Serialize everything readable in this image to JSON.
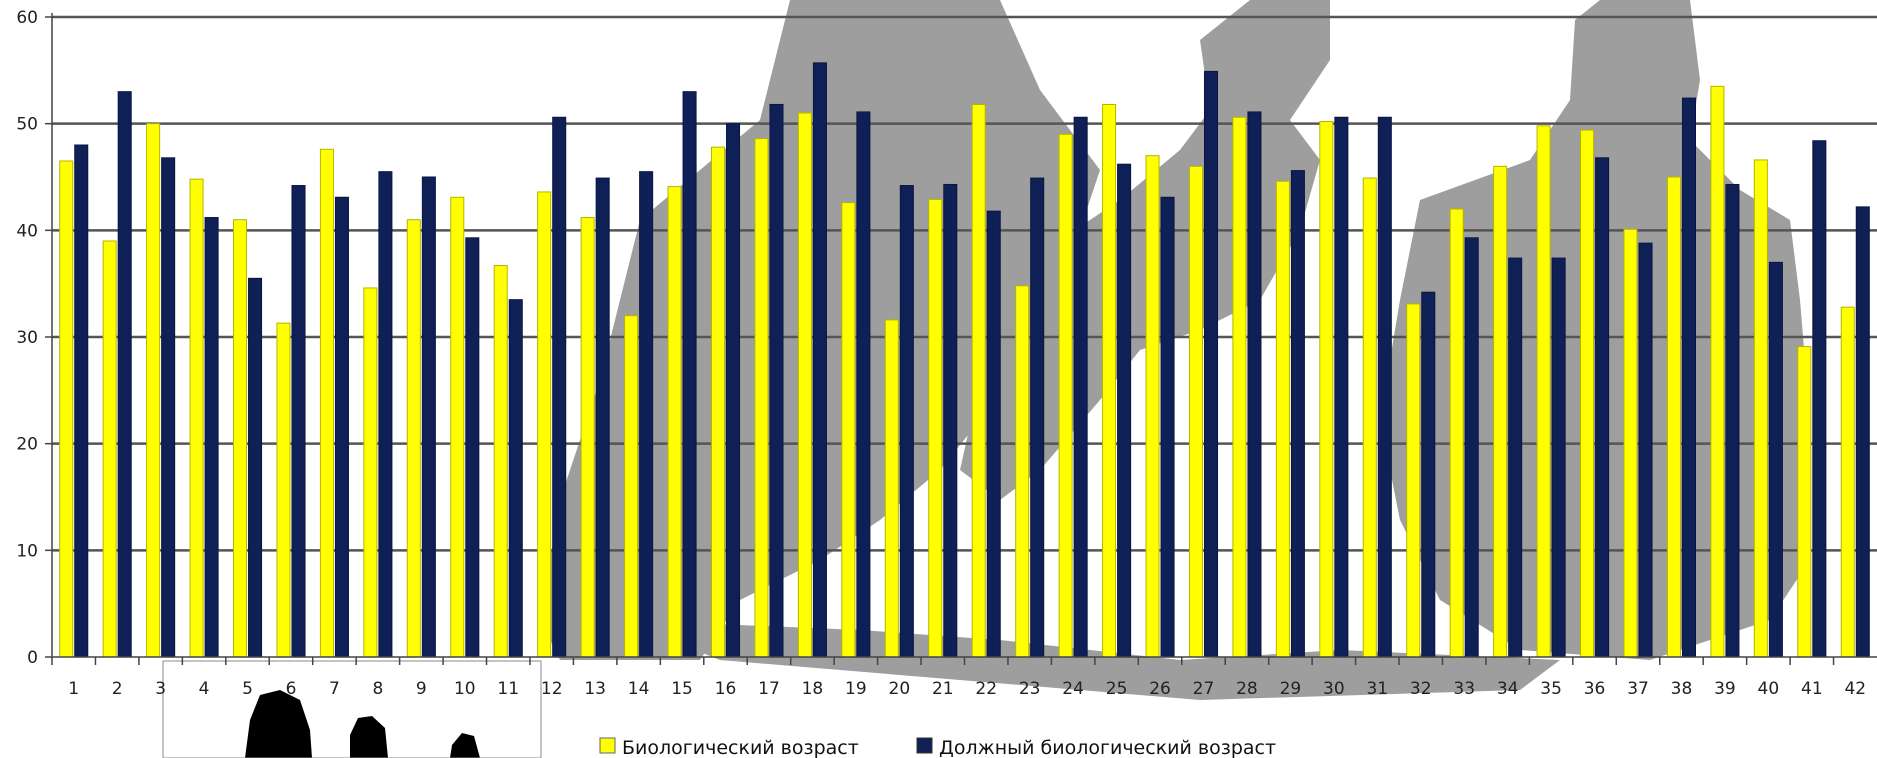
{
  "chart_data": {
    "type": "bar",
    "categories": [
      "1",
      "2",
      "3",
      "4",
      "5",
      "6",
      "7",
      "8",
      "9",
      "10",
      "11",
      "12",
      "13",
      "14",
      "15",
      "16",
      "17",
      "18",
      "19",
      "20",
      "21",
      "22",
      "23",
      "24",
      "25",
      "26",
      "27",
      "28",
      "29",
      "30",
      "31",
      "32",
      "33",
      "34",
      "35",
      "36",
      "37",
      "38",
      "39",
      "40",
      "41",
      "42"
    ],
    "series": [
      {
        "name": "Биологический возраст",
        "color": "#ffff00",
        "values": [
          46.5,
          39,
          50,
          44.8,
          41,
          31.3,
          47.6,
          34.6,
          41,
          43.1,
          36.7,
          43.6,
          41.2,
          32,
          44.1,
          47.8,
          48.6,
          51,
          42.6,
          31.6,
          42.9,
          51.8,
          34.8,
          49,
          51.8,
          47,
          46,
          50.6,
          44.6,
          50.2,
          44.9,
          33.1,
          42,
          46,
          49.8,
          49.4,
          40.1,
          45,
          53.5,
          46.6,
          29.1,
          32.8
        ]
      },
      {
        "name": "Должный биологический возраст",
        "color": "#0f2057",
        "values": [
          48,
          53,
          46.8,
          41.2,
          35.5,
          44.2,
          43.1,
          45.5,
          45,
          39.3,
          33.5,
          50.6,
          44.9,
          45.5,
          53,
          50,
          51.8,
          55.7,
          51.1,
          44.2,
          44.3,
          41.8,
          44.9,
          50.6,
          46.2,
          43.1,
          54.9,
          51.1,
          45.6,
          50.6,
          50.6,
          34.2,
          39.3,
          37.4,
          37.4,
          46.8,
          38.8,
          52.4,
          44.3,
          37,
          48.4,
          42.2
        ]
      }
    ],
    "yticks": [
      0,
      10,
      20,
      30,
      40,
      50,
      60
    ],
    "ylim": [
      0,
      60
    ],
    "grid": true,
    "legend": "bottom",
    "xlabel": "",
    "ylabel": "",
    "title": ""
  },
  "colors": {
    "gridline": "#555555",
    "silhouette": "#9e9e9e",
    "axis": "#444444"
  }
}
